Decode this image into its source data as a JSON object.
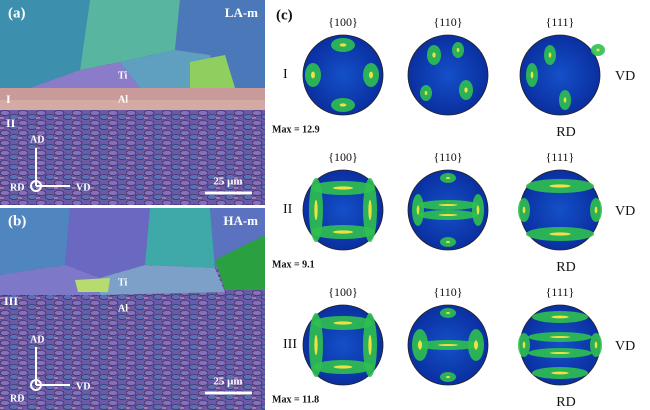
{
  "panel_a": {
    "label": "(a)",
    "sample": "LA-m",
    "layer_labels": [
      "I",
      "II"
    ],
    "phases": [
      "Ti",
      "Al"
    ],
    "axes": [
      "AD",
      "RD",
      "VD"
    ],
    "scale_bar": "25 μm"
  },
  "panel_b": {
    "label": "(b)",
    "sample": "HA-m",
    "layer_labels": [
      "III"
    ],
    "phases": [
      "Ti",
      "Al"
    ],
    "axes": [
      "AD",
      "RD",
      "VD"
    ],
    "scale_bar": "25 μm"
  },
  "panel_c": {
    "label": "(c)",
    "rows": [
      {
        "label": "I",
        "planes": [
          "{100}",
          "{110}",
          "{111}"
        ],
        "max": "Max = 12.9",
        "side_axis": "VD",
        "bottom_axis": "RD"
      },
      {
        "label": "II",
        "planes": [
          "{100}",
          "{110}",
          "{111}"
        ],
        "max": "Max = 9.1",
        "side_axis": "VD",
        "bottom_axis": "RD"
      },
      {
        "label": "III",
        "planes": [
          "{100}",
          "{110}",
          "{111}"
        ],
        "max": "Max = 11.8",
        "side_axis": "VD",
        "bottom_axis": "RD"
      }
    ]
  }
}
